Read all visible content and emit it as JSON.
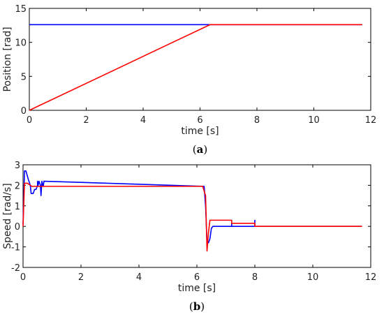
{
  "colors": {
    "blue": "#0000ff",
    "red": "#ff0000"
  },
  "chart_data": [
    {
      "type": "line",
      "caption_open": "(",
      "caption_letter": "a",
      "caption_close": ")",
      "xlabel": "time [s]",
      "ylabel": "Position [rad]",
      "xlim": [
        0,
        12
      ],
      "ylim": [
        0,
        15
      ],
      "xticks": [
        0,
        2,
        4,
        6,
        8,
        10,
        12
      ],
      "yticks": [
        0,
        5,
        10,
        15
      ],
      "grid": false,
      "series": [
        {
          "color": "blue",
          "x": [
            0,
            6.35,
            11.7
          ],
          "y": [
            12.6,
            12.6,
            12.6
          ]
        },
        {
          "color": "red",
          "x": [
            0,
            6.35,
            11.7
          ],
          "y": [
            0,
            12.6,
            12.6
          ]
        }
      ]
    },
    {
      "type": "line",
      "caption_open": "(",
      "caption_letter": "b",
      "caption_close": ")",
      "xlabel": "time [s]",
      "ylabel": "Speed [rad/s]",
      "xlim": [
        0,
        12
      ],
      "ylim": [
        -2,
        3
      ],
      "xticks": [
        0,
        2,
        4,
        6,
        8,
        10,
        12
      ],
      "yticks": [
        -2,
        -1,
        0,
        1,
        2,
        3
      ],
      "grid": false,
      "series": [
        {
          "color": "blue",
          "x": [
            0,
            0.05,
            0.1,
            0.18,
            0.25,
            0.28,
            0.3,
            0.35,
            0.4,
            0.45,
            0.5,
            0.5,
            0.52,
            0.55,
            0.6,
            0.62,
            0.65,
            0.68,
            0.7,
            0.72,
            6.25,
            6.3,
            6.35,
            6.4,
            6.45,
            6.5,
            6.55,
            6.6,
            6.65,
            7.2,
            7.2,
            7.2,
            7.25,
            8.0,
            8.0,
            8.0,
            11.7
          ],
          "y": [
            0.1,
            2.7,
            2.7,
            2.3,
            2.0,
            1.6,
            1.6,
            1.6,
            1.8,
            1.8,
            2.0,
            2.2,
            2.0,
            2.2,
            2.0,
            1.5,
            2.2,
            2.0,
            1.95,
            2.2,
            1.95,
            1.0,
            -0.8,
            -0.8,
            -0.6,
            -0.1,
            0.0,
            0.0,
            0.0,
            0.0,
            0.3,
            0.0,
            0.0,
            0.0,
            0.3,
            0.0,
            0.0
          ]
        },
        {
          "color": "red",
          "x": [
            0,
            0.05,
            0.15,
            0.3,
            0.4,
            6.2,
            6.3,
            6.35,
            6.4,
            6.45,
            6.55,
            6.6,
            7.2,
            7.2,
            8.0,
            8.0,
            11.7
          ],
          "y": [
            0.0,
            2.1,
            2.1,
            1.95,
            1.95,
            1.95,
            1.5,
            -1.2,
            -0.3,
            0.3,
            0.3,
            0.3,
            0.3,
            0.15,
            0.15,
            0.0,
            0.0
          ]
        }
      ]
    }
  ]
}
